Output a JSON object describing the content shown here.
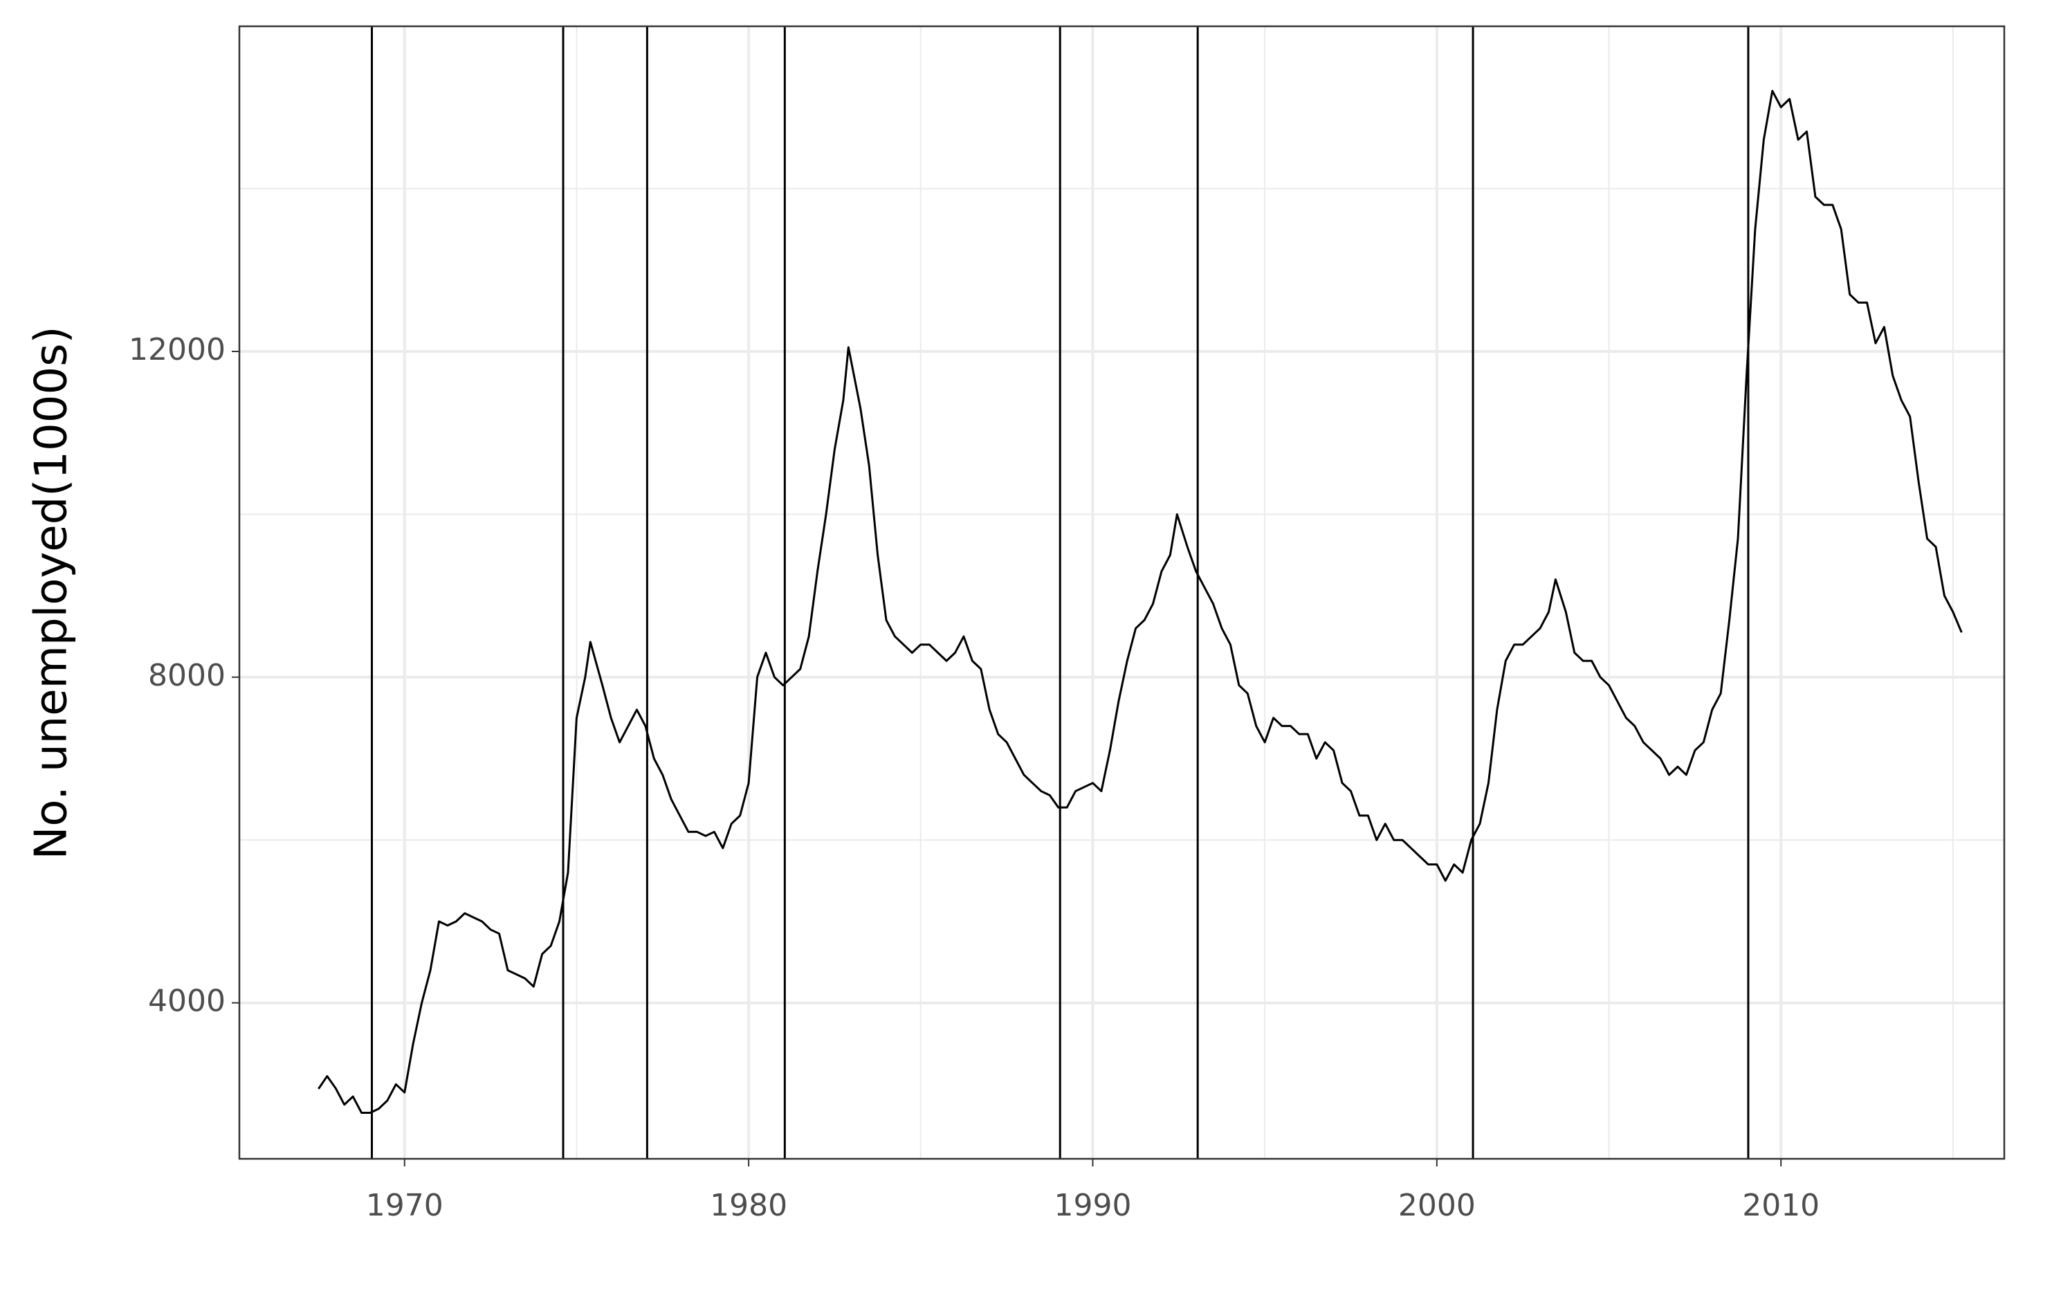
{
  "chart_data": {
    "type": "line",
    "ylabel": "No. unemployed(1000s)",
    "color": "#000000",
    "x": [
      1967.5,
      1967.75,
      1968.0,
      1968.25,
      1968.5,
      1968.75,
      1969.0,
      1969.25,
      1969.5,
      1969.75,
      1970.0,
      1970.25,
      1970.5,
      1970.75,
      1971.0,
      1971.25,
      1971.5,
      1971.75,
      1972.0,
      1972.25,
      1972.5,
      1972.75,
      1973.0,
      1973.25,
      1973.5,
      1973.75,
      1974.0,
      1974.25,
      1974.5,
      1974.75,
      1975.0,
      1975.25,
      1975.4,
      1975.75,
      1976.0,
      1976.25,
      1976.5,
      1976.75,
      1977.0,
      1977.25,
      1977.5,
      1977.75,
      1978.0,
      1978.25,
      1978.5,
      1978.75,
      1979.0,
      1979.25,
      1979.5,
      1979.75,
      1980.0,
      1980.25,
      1980.5,
      1980.75,
      1981.0,
      1981.25,
      1981.5,
      1981.75,
      1982.0,
      1982.25,
      1982.5,
      1982.75,
      1982.9,
      1983.25,
      1983.5,
      1983.75,
      1984.0,
      1984.25,
      1984.5,
      1984.75,
      1985.0,
      1985.25,
      1985.5,
      1985.75,
      1986.0,
      1986.25,
      1986.5,
      1986.75,
      1987.0,
      1987.25,
      1987.5,
      1987.75,
      1988.0,
      1988.25,
      1988.5,
      1988.75,
      1989.0,
      1989.25,
      1989.5,
      1989.75,
      1990.0,
      1990.25,
      1990.5,
      1990.75,
      1991.0,
      1991.25,
      1991.5,
      1991.75,
      1992.0,
      1992.25,
      1992.45,
      1992.75,
      1993.0,
      1993.25,
      1993.5,
      1993.75,
      1994.0,
      1994.25,
      1994.5,
      1994.75,
      1995.0,
      1995.25,
      1995.5,
      1995.75,
      1996.0,
      1996.25,
      1996.5,
      1996.75,
      1997.0,
      1997.25,
      1997.5,
      1997.75,
      1998.0,
      1998.25,
      1998.5,
      1998.75,
      1999.0,
      1999.25,
      1999.5,
      1999.75,
      2000.0,
      2000.25,
      2000.5,
      2000.75,
      2001.0,
      2001.25,
      2001.5,
      2001.75,
      2002.0,
      2002.25,
      2002.5,
      2002.75,
      2003.0,
      2003.25,
      2003.45,
      2003.75,
      2004.0,
      2004.25,
      2004.5,
      2004.75,
      2005.0,
      2005.25,
      2005.5,
      2005.75,
      2006.0,
      2006.25,
      2006.5,
      2006.75,
      2007.0,
      2007.25,
      2007.5,
      2007.75,
      2008.0,
      2008.25,
      2008.5,
      2008.75,
      2009.0,
      2009.25,
      2009.5,
      2009.75,
      2010.0,
      2010.25,
      2010.5,
      2010.75,
      2011.0,
      2011.25,
      2011.5,
      2011.75,
      2012.0,
      2012.25,
      2012.5,
      2012.75,
      2013.0,
      2013.25,
      2013.5,
      2013.75,
      2014.0,
      2014.25,
      2014.5,
      2014.75,
      2015.0,
      2015.25
    ],
    "values": [
      2944,
      3100,
      2950,
      2750,
      2850,
      2650,
      2650,
      2700,
      2800,
      3000,
      2900,
      3500,
      4000,
      4400,
      5000,
      4950,
      5000,
      5100,
      5050,
      5000,
      4900,
      4850,
      4400,
      4350,
      4300,
      4200,
      4600,
      4700,
      5000,
      5600,
      7500,
      8000,
      8433,
      7900,
      7500,
      7200,
      7400,
      7600,
      7400,
      7000,
      6800,
      6500,
      6300,
      6100,
      6100,
      6050,
      6100,
      5900,
      6200,
      6300,
      6700,
      8000,
      8300,
      8000,
      7900,
      8000,
      8100,
      8500,
      9300,
      10000,
      10800,
      11400,
      12051,
      11300,
      10600,
      9500,
      8700,
      8500,
      8400,
      8300,
      8400,
      8400,
      8300,
      8200,
      8300,
      8500,
      8200,
      8100,
      7600,
      7300,
      7200,
      7000,
      6800,
      6700,
      6600,
      6550,
      6400,
      6400,
      6600,
      6650,
      6700,
      6600,
      7100,
      7700,
      8200,
      8600,
      8700,
      8900,
      9300,
      9500,
      10000,
      9600,
      9300,
      9100,
      8900,
      8600,
      8400,
      7900,
      7800,
      7400,
      7200,
      7500,
      7400,
      7400,
      7300,
      7300,
      7000,
      7200,
      7100,
      6700,
      6600,
      6300,
      6300,
      6000,
      6200,
      6000,
      6000,
      5900,
      5800,
      5700,
      5700,
      5500,
      5700,
      5600,
      6000,
      6200,
      6700,
      7600,
      8200,
      8400,
      8400,
      8500,
      8600,
      8800,
      9200,
      8800,
      8300,
      8200,
      8200,
      8000,
      7900,
      7700,
      7500,
      7400,
      7200,
      7100,
      7000,
      6800,
      6900,
      6800,
      7100,
      7200,
      7600,
      7800,
      8700,
      9700,
      11700,
      13500,
      14600,
      15200,
      15000,
      15100,
      14600,
      14700,
      13900,
      13800,
      13800,
      13500,
      12700,
      12600,
      12600,
      12100,
      12300,
      11700,
      11400,
      11200,
      10400,
      9700,
      9600,
      9000,
      8800,
      8549
    ],
    "vlines": [
      1969.05,
      1974.61,
      1977.05,
      1981.05,
      1989.05,
      1993.05,
      2001.05,
      2009.05
    ],
    "xlim": [
      1965.2,
      2016.49
    ],
    "ylim": [
      2085,
      15993
    ],
    "xticks": [
      1970,
      1980,
      1990,
      2000,
      2010
    ],
    "yticks": [
      4000,
      8000,
      12000
    ],
    "x_minor_grid": [
      1975,
      1985,
      1995,
      2005,
      2015
    ],
    "y_minor_grid": [
      6000,
      10000,
      14000
    ],
    "grid": true
  }
}
